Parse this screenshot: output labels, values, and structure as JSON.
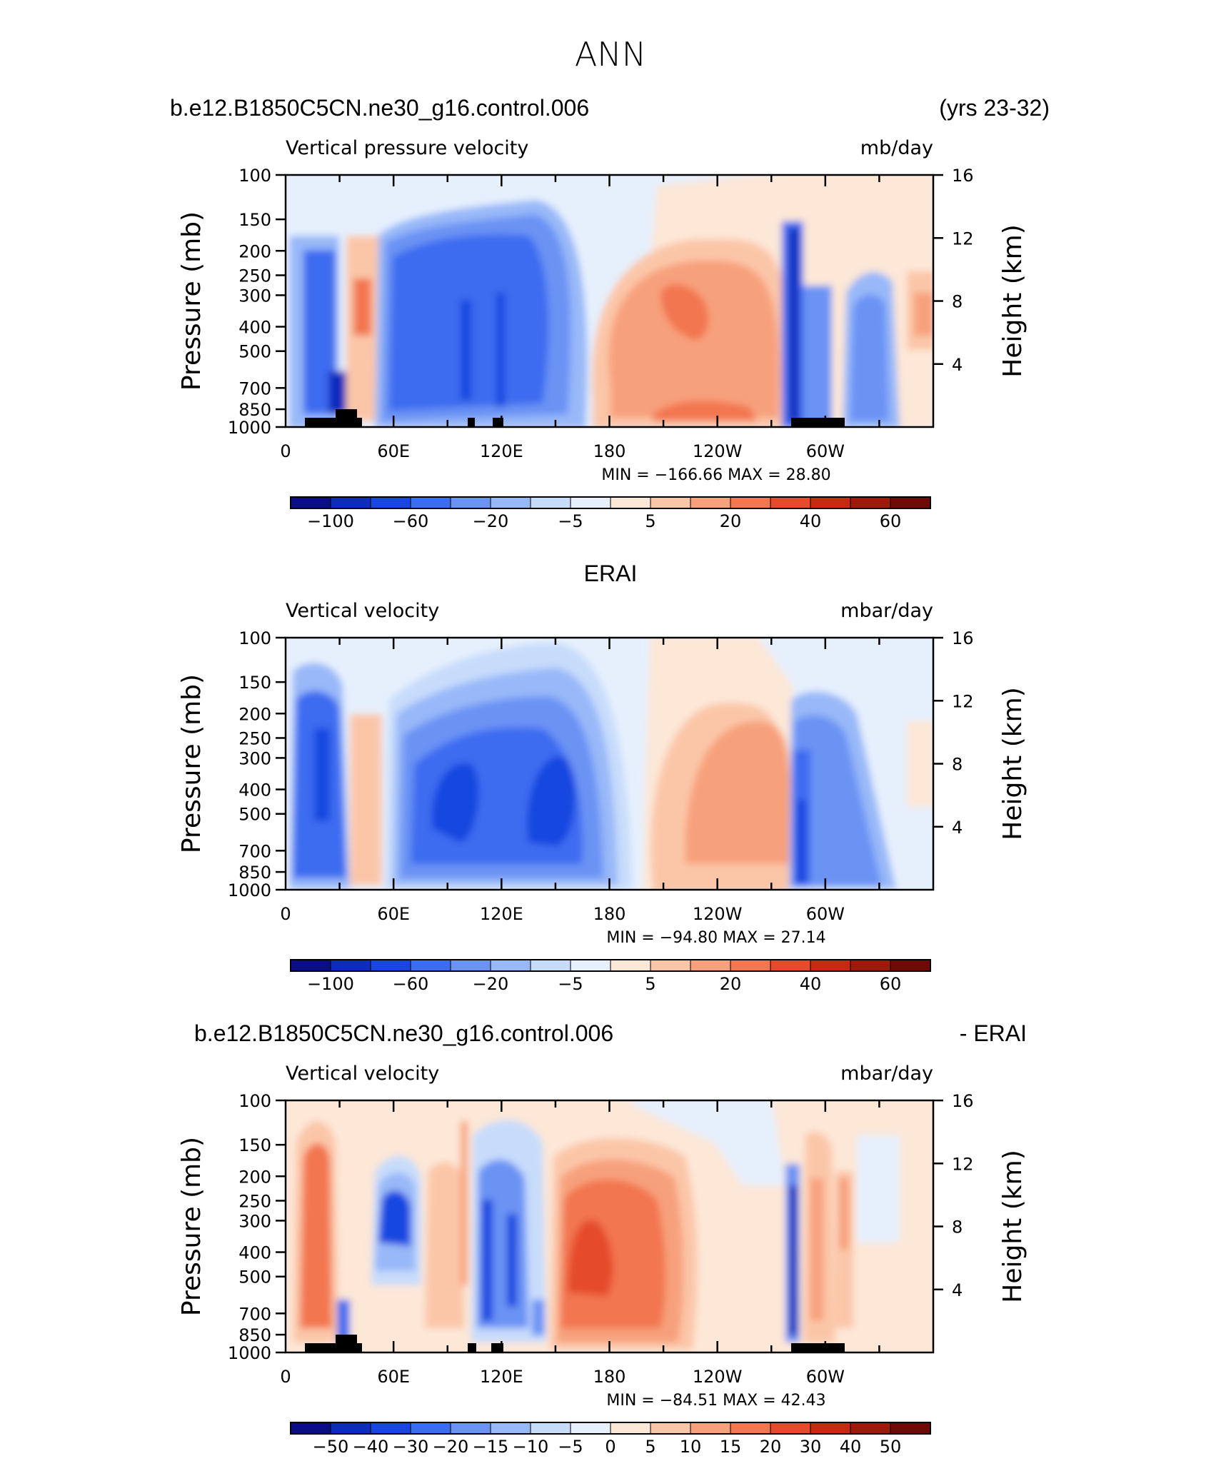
{
  "figure": {
    "season": "ANN"
  },
  "panels": [
    {
      "key": "model",
      "title_left": "b.e12.B1850C5CN.ne30_g16.control.006",
      "title_right": "(yrs 23-32)",
      "title_center": "",
      "var_label": "Vertical pressure velocity",
      "units": "mb/day",
      "stats": "MIN = −166.66   MAX =   28.80"
    },
    {
      "key": "obs",
      "title_left": "",
      "title_right": "",
      "title_center": "ERAI",
      "var_label": "Vertical velocity",
      "units": "mbar/day",
      "stats": "MIN = −94.80   MAX =   27.14"
    },
    {
      "key": "diff",
      "title_left": "b.e12.B1850C5CN.ne30_g16.control.006",
      "title_right": "- ERAI",
      "title_center": "",
      "var_label": "Vertical velocity",
      "units": "mbar/day",
      "stats": "MIN = −84.51   MAX =   42.43"
    }
  ],
  "axes": {
    "ylabel_left": "Pressure (mb)",
    "ylabel_right": "Height (km)",
    "pressure_ticks": [
      "100",
      "150",
      "200",
      "250",
      "300",
      "400",
      "500",
      "700",
      "850",
      "1000"
    ],
    "height_ticks": [
      "16",
      "12",
      "8",
      "4"
    ],
    "lon_ticks": [
      "0",
      "60E",
      "120E",
      "180",
      "120W",
      "60W"
    ]
  },
  "colorbars": {
    "main": {
      "labels": [
        "−100",
        "−60",
        "−20",
        "−5",
        "5",
        "20",
        "40",
        "60"
      ],
      "colors": [
        "#0a0d85",
        "#0d2bbd",
        "#1846e0",
        "#3c6cf0",
        "#6a93f4",
        "#98b8f8",
        "#c7dcfb",
        "#e6f0fd",
        "#fde7d7",
        "#fbc6a8",
        "#f7a07b",
        "#f27650",
        "#e54b2a",
        "#c72a12",
        "#9d1a08",
        "#6e0a02"
      ]
    },
    "diff": {
      "labels": [
        "−50",
        "−40",
        "−30",
        "−20",
        "−15",
        "−10",
        "−5",
        "0",
        "5",
        "10",
        "15",
        "20",
        "30",
        "40",
        "50"
      ],
      "colors": [
        "#0a0d85",
        "#0d2bbd",
        "#1846e0",
        "#3c6cf0",
        "#6a93f4",
        "#98b8f8",
        "#c7dcfb",
        "#e6f0fd",
        "#fde7d7",
        "#fbc6a8",
        "#f7a07b",
        "#f27650",
        "#e54b2a",
        "#c72a12",
        "#9d1a08",
        "#6e0a02"
      ]
    }
  },
  "chart_data": [
    {
      "type": "heatmap",
      "title": "Vertical pressure velocity",
      "units": "mb/day",
      "xlabel": "",
      "ylabel": "Pressure (mb)",
      "x": "longitude 0–360",
      "y": "pressure 1000–100 mb",
      "min": -166.66,
      "max": 28.8,
      "levels": [
        -100,
        -80,
        -60,
        -40,
        -20,
        -10,
        -5,
        0,
        5,
        10,
        20,
        30,
        40,
        50,
        60
      ]
    },
    {
      "type": "heatmap",
      "title": "Vertical velocity",
      "units": "mbar/day",
      "xlabel": "",
      "ylabel": "Pressure (mb)",
      "min": -94.8,
      "max": 27.14,
      "levels": [
        -100,
        -80,
        -60,
        -40,
        -20,
        -10,
        -5,
        0,
        5,
        10,
        20,
        30,
        40,
        50,
        60
      ]
    },
    {
      "type": "heatmap",
      "title": "Vertical velocity",
      "units": "mbar/day",
      "xlabel": "",
      "ylabel": "Pressure (mb)",
      "min": -84.51,
      "max": 42.43,
      "levels": [
        -50,
        -40,
        -30,
        -20,
        -15,
        -10,
        -5,
        0,
        5,
        10,
        15,
        20,
        30,
        40,
        50
      ]
    }
  ]
}
